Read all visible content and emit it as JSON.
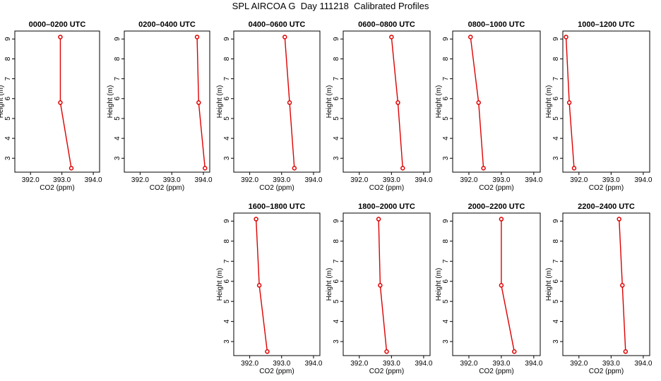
{
  "title": "SPL AIRCOA G  Day 111218  Calibrated Profiles",
  "chart_data": {
    "type": "line",
    "title": "SPL AIRCOA G  Day 111218  Calibrated Profiles",
    "xlabel": "CO2 (ppm)",
    "ylabel": "Height (m)",
    "xlim": [
      391.5,
      394.2
    ],
    "ylim": [
      2.3,
      9.4
    ],
    "xticks": [
      "392.0",
      "393.0",
      "394.0"
    ],
    "yticks": [
      "3",
      "4",
      "5",
      "6",
      "7",
      "8",
      "9"
    ],
    "series_color": "#dd0000",
    "heights": [
      2.5,
      5.8,
      9.1
    ],
    "panels": [
      {
        "title": "0000–0200 UTC",
        "x": [
          393.3,
          392.95,
          392.95
        ]
      },
      {
        "title": "0200–0400 UTC",
        "x": [
          394.05,
          393.85,
          393.8
        ]
      },
      {
        "title": "0400–0600 UTC",
        "x": [
          393.4,
          393.25,
          393.1
        ]
      },
      {
        "title": "0600–0800 UTC",
        "x": [
          393.35,
          393.2,
          393.0
        ]
      },
      {
        "title": "0800–1000 UTC",
        "x": [
          392.45,
          392.3,
          392.05
        ]
      },
      {
        "title": "1000–1200 UTC",
        "x": [
          391.85,
          391.7,
          391.6
        ]
      },
      {
        "title": "1600–1800 UTC",
        "x": [
          392.55,
          392.3,
          392.2
        ]
      },
      {
        "title": "1800–2000 UTC",
        "x": [
          392.85,
          392.65,
          392.6
        ]
      },
      {
        "title": "2000–2200 UTC",
        "x": [
          393.4,
          393.0,
          393.0
        ]
      },
      {
        "title": "2200–2400 UTC",
        "x": [
          393.45,
          393.35,
          393.25
        ]
      }
    ]
  }
}
